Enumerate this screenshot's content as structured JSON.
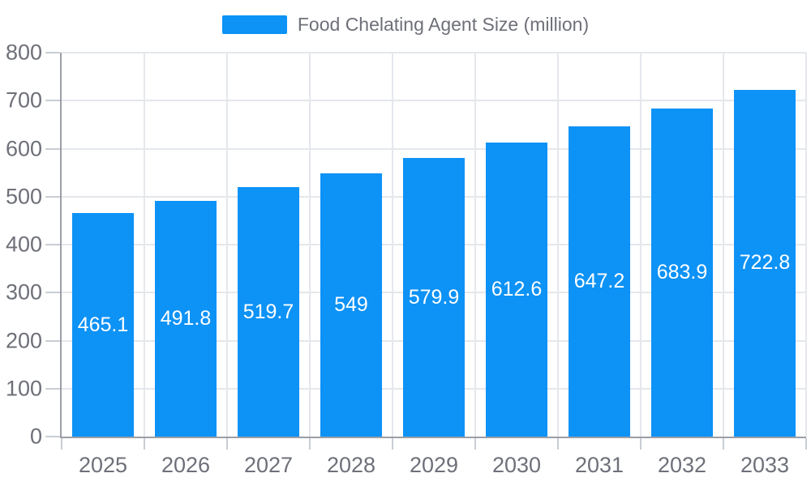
{
  "chart_data": {
    "type": "bar",
    "title": "",
    "legend": {
      "label": "Food Chelating Agent Size (million)",
      "position": "top"
    },
    "categories": [
      "2025",
      "2026",
      "2027",
      "2028",
      "2029",
      "2030",
      "2031",
      "2032",
      "2033"
    ],
    "values": [
      465.1,
      491.8,
      519.7,
      549,
      579.9,
      612.6,
      647.2,
      683.9,
      722.8
    ],
    "series_name": "Food Chelating Agent Size (million)",
    "xlabel": "",
    "ylabel": "",
    "ylim": [
      0,
      800
    ],
    "yticks": [
      0,
      100,
      200,
      300,
      400,
      500,
      600,
      700,
      800
    ],
    "grid": {
      "horizontal": true,
      "vertical": true
    },
    "value_labels": {
      "position": "inside-center",
      "color": "#ffffff"
    }
  },
  "colors": {
    "background": "#ffffff",
    "bar": "#0d92f6",
    "grid_line": "#e4e7ec",
    "axis_line": "#9a9ea6",
    "tick": "#c9cdd4",
    "axis_label": "#6e7079",
    "legend_text": "#6e7079",
    "value_label": "#ffffff"
  }
}
